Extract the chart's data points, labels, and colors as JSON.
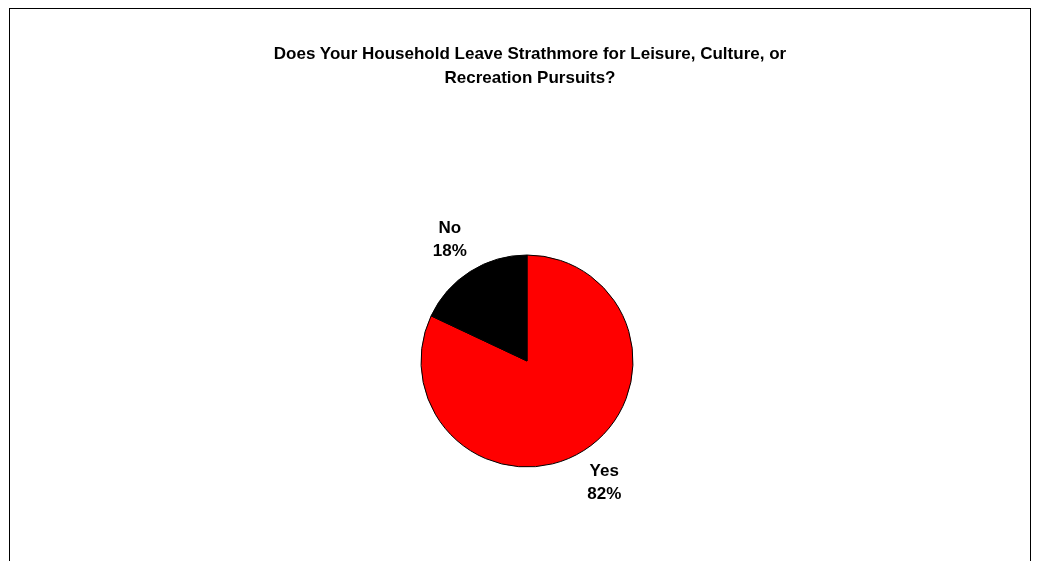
{
  "chart_data": {
    "type": "pie",
    "title": "Does Your Household Leave Strathmore for Leisure, Culture, or Recreation Pursuits?",
    "categories": [
      "Yes",
      "No"
    ],
    "values": [
      82,
      18
    ],
    "colors": [
      "#ff0000",
      "#000000"
    ],
    "value_labels": [
      "82%",
      "18%"
    ],
    "legend": false
  }
}
